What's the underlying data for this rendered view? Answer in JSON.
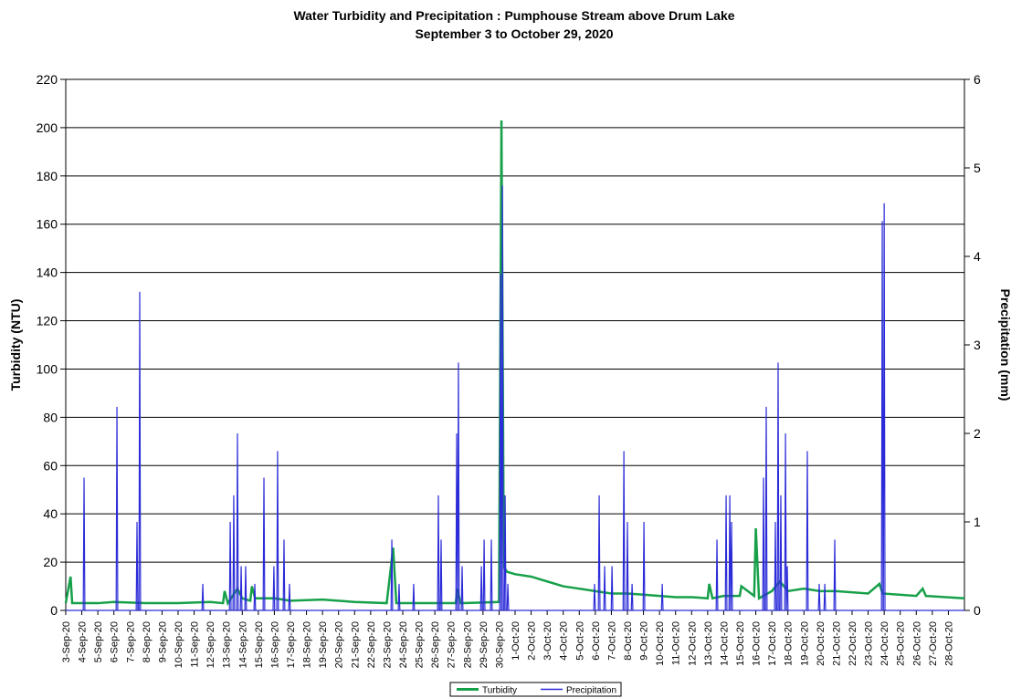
{
  "chart_data": {
    "type": "line",
    "title": "Water Turbidity and Precipitation : Pumphouse Stream above Drum Lake",
    "subtitle": "September 3 to October 29, 2020",
    "y_label": "Turbidity (NTU)",
    "y2_label": "Precipitation (mm)",
    "xlim": [
      0,
      56
    ],
    "xticks": [
      {
        "value": 0,
        "label": "3-Sep-20"
      },
      {
        "value": 1,
        "label": "4-Sep-20"
      },
      {
        "value": 2,
        "label": "5-Sep-20"
      },
      {
        "value": 3,
        "label": "6-Sep-20"
      },
      {
        "value": 4,
        "label": "7-Sep-20"
      },
      {
        "value": 5,
        "label": "8-Sep-20"
      },
      {
        "value": 6,
        "label": "9-Sep-20"
      },
      {
        "value": 7,
        "label": "10-Sep-20"
      },
      {
        "value": 8,
        "label": "11-Sep-20"
      },
      {
        "value": 9,
        "label": "12-Sep-20"
      },
      {
        "value": 10,
        "label": "13-Sep-20"
      },
      {
        "value": 11,
        "label": "14-Sep-20"
      },
      {
        "value": 12,
        "label": "15-Sep-20"
      },
      {
        "value": 13,
        "label": "16-Sep-20"
      },
      {
        "value": 14,
        "label": "17-Sep-20"
      },
      {
        "value": 15,
        "label": "18-Sep-20"
      },
      {
        "value": 16,
        "label": "19-Sep-20"
      },
      {
        "value": 17,
        "label": "20-Sep-20"
      },
      {
        "value": 18,
        "label": "21-Sep-20"
      },
      {
        "value": 19,
        "label": "22-Sep-20"
      },
      {
        "value": 20,
        "label": "23-Sep-20"
      },
      {
        "value": 21,
        "label": "24-Sep-20"
      },
      {
        "value": 22,
        "label": "25-Sep-20"
      },
      {
        "value": 23,
        "label": "26-Sep-20"
      },
      {
        "value": 24,
        "label": "27-Sep-20"
      },
      {
        "value": 25,
        "label": "28-Sep-20"
      },
      {
        "value": 26,
        "label": "29-Sep-20"
      },
      {
        "value": 27,
        "label": "30-Sep-20"
      },
      {
        "value": 28,
        "label": "1-Oct-20"
      },
      {
        "value": 29,
        "label": "2-Oct-20"
      },
      {
        "value": 30,
        "label": "3-Oct-20"
      },
      {
        "value": 31,
        "label": "4-Oct-20"
      },
      {
        "value": 32,
        "label": "5-Oct-20"
      },
      {
        "value": 33,
        "label": "6-Oct-20"
      },
      {
        "value": 34,
        "label": "7-Oct-20"
      },
      {
        "value": 35,
        "label": "8-Oct-20"
      },
      {
        "value": 36,
        "label": "9-Oct-20"
      },
      {
        "value": 37,
        "label": "10-Oct-20"
      },
      {
        "value": 38,
        "label": "11-Oct-20"
      },
      {
        "value": 39,
        "label": "12-Oct-20"
      },
      {
        "value": 40,
        "label": "13-Oct-20"
      },
      {
        "value": 41,
        "label": "14-Oct-20"
      },
      {
        "value": 42,
        "label": "15-Oct-20"
      },
      {
        "value": 43,
        "label": "16-Oct-20"
      },
      {
        "value": 44,
        "label": "17-Oct-20"
      },
      {
        "value": 45,
        "label": "18-Oct-20"
      },
      {
        "value": 46,
        "label": "19-Oct-20"
      },
      {
        "value": 47,
        "label": "20-Oct-20"
      },
      {
        "value": 48,
        "label": "21-Oct-20"
      },
      {
        "value": 49,
        "label": "22-Oct-20"
      },
      {
        "value": 50,
        "label": "23-Oct-20"
      },
      {
        "value": 51,
        "label": "24-Oct-20"
      },
      {
        "value": 52,
        "label": "25-Oct-20"
      },
      {
        "value": 53,
        "label": "26-Oct-20"
      },
      {
        "value": 54,
        "label": "27-Oct-20"
      },
      {
        "value": 55,
        "label": "28-Oct-20"
      }
    ],
    "ylim": [
      0,
      220
    ],
    "yticks": [
      0,
      20,
      40,
      60,
      80,
      100,
      120,
      140,
      160,
      180,
      200,
      220
    ],
    "y2lim": [
      0,
      6
    ],
    "y2ticks": [
      0,
      1,
      2,
      3,
      4,
      5,
      6
    ],
    "grid": true,
    "legend": "bottom",
    "series": [
      {
        "name": "Turbidity",
        "color": "#17a04a",
        "x": [
          0,
          0.3,
          0.4,
          2,
          3,
          5,
          7,
          9,
          9.8,
          9.9,
          10.1,
          10.7,
          11,
          11.5,
          11.6,
          11.8,
          13,
          14,
          16,
          18,
          20,
          20.4,
          20.6,
          24.3,
          24.4,
          24.6,
          27,
          27.15,
          27.3,
          27.5,
          28,
          29,
          30,
          31,
          32,
          33,
          34,
          35,
          36,
          37,
          38,
          39,
          40,
          40.1,
          40.3,
          41,
          42,
          42.1,
          42.9,
          43,
          43.2,
          44,
          44.5,
          45,
          46,
          47,
          48,
          50,
          50.7,
          50.9,
          53,
          53.4,
          53.6,
          56
        ],
        "values": [
          3,
          14,
          3,
          3,
          3.5,
          3,
          3,
          3.5,
          3,
          8,
          3,
          9,
          5,
          4,
          10,
          5,
          5,
          4,
          4.5,
          3.5,
          3,
          26,
          3,
          3,
          9,
          3,
          3.5,
          203,
          18,
          16,
          15,
          14,
          12,
          10,
          9,
          8,
          7,
          7,
          6.5,
          6,
          5.5,
          5.5,
          5,
          11,
          5,
          6,
          6,
          10,
          6,
          34,
          5,
          8,
          12,
          8,
          9,
          8,
          8,
          7,
          11,
          7,
          6,
          9,
          6,
          5
        ]
      },
      {
        "name": "Precipitation",
        "color": "#2b2bd9",
        "axis": "y2",
        "x": [
          0,
          1.09,
          1.14,
          1.19,
          3.14,
          3.19,
          3.24,
          4.39,
          4.44,
          4.49,
          4.56,
          4.61,
          4.66,
          8.49,
          8.54,
          8.59,
          10.2,
          10.25,
          10.3,
          10.42,
          10.47,
          10.52,
          10.65,
          10.7,
          10.75,
          10.88,
          10.93,
          10.98,
          11.16,
          11.21,
          11.26,
          11.73,
          11.78,
          11.83,
          12.3,
          12.35,
          12.4,
          12.92,
          12.97,
          13.02,
          13.15,
          13.2,
          13.25,
          13.55,
          13.6,
          13.65,
          13.89,
          13.94,
          13.99,
          20.27,
          20.32,
          20.37,
          20.72,
          20.77,
          20.82,
          21.63,
          21.68,
          21.73,
          23.17,
          23.22,
          23.27,
          23.34,
          23.39,
          23.44,
          24.31,
          24.36,
          24.41,
          24.42,
          24.47,
          24.52,
          24.65,
          24.7,
          24.75,
          25.85,
          25.9,
          25.95,
          26.02,
          26.07,
          26.12,
          26.47,
          26.52,
          26.57,
          27.04,
          27.09,
          27.14,
          27.16,
          27.21,
          27.26,
          27.33,
          27.38,
          27.43,
          27.5,
          27.55,
          27.6,
          32.9,
          32.95,
          33,
          33.19,
          33.24,
          33.29,
          33.53,
          33.58,
          33.63,
          33.99,
          34.04,
          34.09,
          34.73,
          34.78,
          34.83,
          34.95,
          35,
          35.05,
          35.24,
          35.29,
          35.34,
          35.98,
          36.03,
          36.08,
          37.12,
          37.17,
          37.22,
          40.53,
          40.58,
          40.63,
          41.1,
          41.15,
          41.2,
          41.33,
          41.38,
          41.43,
          41.44,
          41.49,
          41.54,
          43.43,
          43.48,
          43.53,
          43.6,
          43.65,
          43.7,
          44.17,
          44.22,
          44.27,
          44.34,
          44.39,
          44.44,
          44.51,
          44.56,
          44.61,
          44.8,
          44.85,
          44.9,
          44.91,
          44.96,
          45.01,
          46.16,
          46.21,
          46.26,
          46.9,
          46.95,
          47,
          47.25,
          47.3,
          47.35,
          47.87,
          47.92,
          47.97,
          50.83,
          50.88,
          50.93,
          50.95,
          51,
          51.05,
          56
        ],
        "values": [
          0,
          0,
          1.5,
          0,
          0,
          2.3,
          0,
          0,
          1,
          0,
          0,
          3.6,
          0,
          0,
          0.3,
          0,
          0,
          1,
          0,
          0,
          1.3,
          0,
          0,
          2,
          0,
          0,
          0.5,
          0,
          0,
          0.5,
          0,
          0,
          0.3,
          0,
          0,
          1.5,
          0,
          0,
          0.5,
          0,
          0,
          1.8,
          0,
          0,
          0.8,
          0,
          0,
          0.3,
          0,
          0,
          0.8,
          0,
          0,
          0.3,
          0,
          0,
          0.3,
          0,
          0,
          1.3,
          0,
          0,
          0.8,
          0,
          0,
          2,
          0,
          0,
          2.8,
          0,
          0,
          0.5,
          0,
          0,
          0.5,
          0,
          0,
          0.8,
          0,
          0,
          0.8,
          0,
          0,
          3.8,
          0,
          0,
          4.8,
          0,
          0,
          1.3,
          0,
          0,
          0.3,
          0,
          0,
          0.3,
          0,
          0,
          1.3,
          0,
          0,
          0.5,
          0,
          0,
          0.5,
          0,
          0,
          1.8,
          0,
          0,
          1,
          0,
          0,
          0.3,
          0,
          0,
          1,
          0,
          0,
          0.3,
          0,
          0,
          0.8,
          0,
          0,
          1.3,
          0,
          0,
          1.3,
          0,
          0,
          1,
          0,
          0,
          1.5,
          0,
          0,
          2.3,
          0,
          0,
          1,
          0,
          0,
          2.8,
          0,
          0,
          1.3,
          0,
          0,
          2,
          0,
          0,
          0.5,
          0,
          0,
          1.8,
          0,
          0,
          0.3,
          0,
          0,
          0.3,
          0,
          0,
          0.8,
          0,
          0,
          4.4,
          0,
          0,
          4.6,
          0,
          0
        ]
      }
    ]
  }
}
